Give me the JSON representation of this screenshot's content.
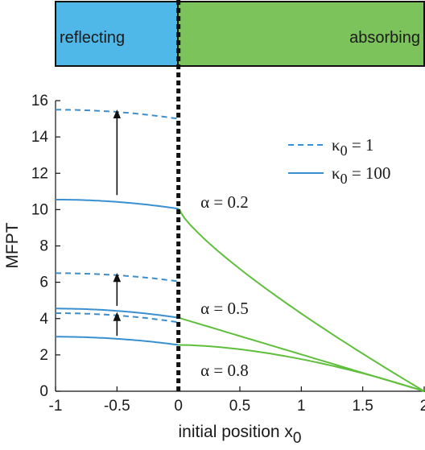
{
  "regions": {
    "reflecting_label": "reflecting",
    "absorbing_label": "absorbing",
    "reflecting_color": "#4fb8e8",
    "absorbing_color": "#7dc35b"
  },
  "chart_data": {
    "type": "line",
    "title": "",
    "xlabel": "initial position x",
    "xlabel_sub": "0",
    "ylabel": "MFPT",
    "xlim": [
      -1,
      2
    ],
    "ylim": [
      0,
      16
    ],
    "xticks": [
      "-1",
      "-0.5",
      "0",
      "0.5",
      "1",
      "1.5",
      "2"
    ],
    "yticks": [
      "0",
      "2",
      "4",
      "6",
      "8",
      "10",
      "12",
      "14",
      "16"
    ],
    "boundary_x": 0,
    "legend": {
      "placement": "top-right",
      "entries": [
        {
          "symbol": "κ",
          "sub": "0",
          "text": " = 1",
          "style": "dashed",
          "color": "#3a8fd0"
        },
        {
          "symbol": "κ",
          "sub": "0",
          "text": " = 100",
          "style": "solid",
          "color": "#3a8fd0"
        }
      ]
    },
    "colors": {
      "reflecting_curve": "#3a8fd0",
      "absorbing_curve": "#5fbf3c"
    },
    "alpha_labels": [
      "α = 0.2",
      "α = 0.5",
      "α = 0.8"
    ],
    "series": [
      {
        "alpha": 0.2,
        "kappa0": 100,
        "style": "solid",
        "region": "reflecting",
        "x": [
          -1,
          0
        ],
        "y_start": 10.55,
        "y_end": 10.05
      },
      {
        "alpha": 0.2,
        "kappa0": 1,
        "style": "dashed",
        "region": "reflecting",
        "x": [
          -1,
          0
        ],
        "y_start": 15.5,
        "y_end": 15.0
      },
      {
        "alpha": 0.5,
        "kappa0": 100,
        "style": "solid",
        "region": "reflecting",
        "x": [
          -1,
          0
        ],
        "y_start": 4.55,
        "y_end": 4.05
      },
      {
        "alpha": 0.5,
        "kappa0": 1,
        "style": "dashed",
        "region": "reflecting",
        "x": [
          -1,
          0
        ],
        "y_start": 6.5,
        "y_end": 6.05
      },
      {
        "alpha": 0.8,
        "kappa0": 100,
        "style": "solid",
        "region": "reflecting",
        "x": [
          -1,
          0
        ],
        "y_start": 3.0,
        "y_end": 2.55
      },
      {
        "alpha": 0.8,
        "kappa0": 1,
        "style": "dashed",
        "region": "reflecting",
        "x": [
          -1,
          0
        ],
        "y_start": 4.3,
        "y_end": 3.8
      },
      {
        "alpha": 0.2,
        "style": "solid",
        "region": "absorbing",
        "x": [
          0,
          2
        ],
        "y_start": 10.05,
        "y_end": 0,
        "curvature": 0.8
      },
      {
        "alpha": 0.5,
        "style": "solid",
        "region": "absorbing",
        "x": [
          0,
          2
        ],
        "y_start": 4.05,
        "y_end": 0,
        "curvature": 1.0
      },
      {
        "alpha": 0.8,
        "style": "solid",
        "region": "absorbing",
        "x": [
          0,
          2
        ],
        "y_start": 2.55,
        "y_end": 0,
        "curvature": 1.7
      }
    ],
    "arrows": [
      {
        "x": -0.5,
        "from": 10.8,
        "to": 15.3
      },
      {
        "x": -0.5,
        "from": 4.7,
        "to": 6.3
      },
      {
        "x": -0.5,
        "from": 3.05,
        "to": 4.15
      }
    ]
  }
}
